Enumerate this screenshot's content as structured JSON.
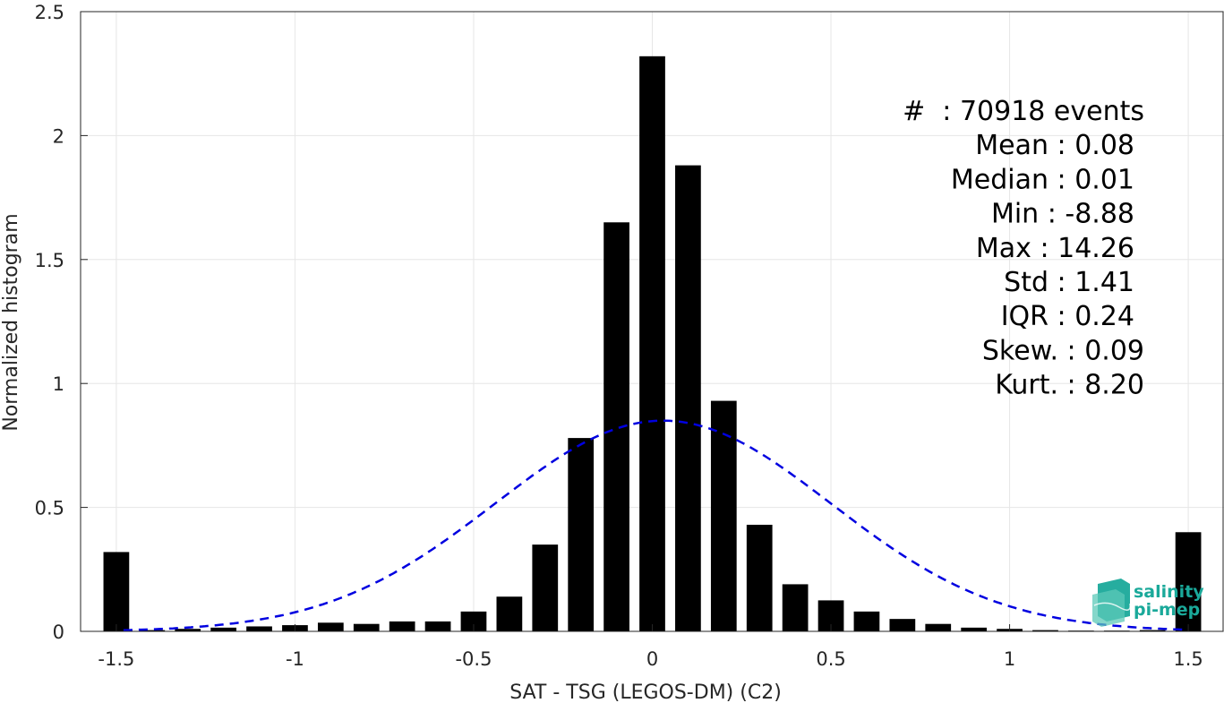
{
  "chart_data": {
    "type": "bar",
    "xlabel": "SAT - TSG (LEGOS-DM) (C2)",
    "ylabel": "Normalized histogram",
    "xlim": [
      -1.6,
      1.6
    ],
    "ylim": [
      0,
      2.5
    ],
    "xticks": [
      -1.5,
      -1,
      -0.5,
      0,
      0.5,
      1,
      1.5
    ],
    "xtick_labels": [
      "-1.5",
      "-1",
      "-0.5",
      "0",
      "0.5",
      "1",
      "1.5"
    ],
    "yticks": [
      0,
      0.5,
      1,
      1.5,
      2,
      2.5
    ],
    "ytick_labels": [
      "0",
      "0.5",
      "1",
      "1.5",
      "2",
      "2.5"
    ],
    "grid": true,
    "bar_color": "#000000",
    "bars": {
      "x": [
        -1.5,
        -1.4,
        -1.3,
        -1.2,
        -1.1,
        -1.0,
        -0.9,
        -0.8,
        -0.7,
        -0.6,
        -0.5,
        -0.4,
        -0.3,
        -0.2,
        -0.1,
        0.0,
        0.1,
        0.2,
        0.3,
        0.4,
        0.5,
        0.6,
        0.7,
        0.8,
        0.9,
        1.0,
        1.1,
        1.2,
        1.3,
        1.4,
        1.5
      ],
      "values": [
        0.32,
        0.005,
        0.01,
        0.015,
        0.02,
        0.025,
        0.035,
        0.03,
        0.04,
        0.04,
        0.08,
        0.14,
        0.35,
        0.78,
        1.65,
        2.32,
        1.88,
        0.93,
        0.43,
        0.19,
        0.125,
        0.08,
        0.05,
        0.03,
        0.015,
        0.01,
        0.005,
        0.003,
        0.003,
        0.005,
        0.4
      ]
    },
    "fit_curve": {
      "type": "normal",
      "mean": 0.03,
      "peak": 0.85,
      "std": 0.47,
      "color": "#0000e0",
      "style": "dashed"
    },
    "stats": [
      "#  : 70918 events",
      "Mean : 0.08",
      "Median : 0.01",
      "Min : -8.88",
      "Max : 14.26",
      "Std : 1.41",
      "IQR : 0.24",
      "Skew. : 0.09",
      "Kurt. : 8.20"
    ]
  },
  "logo": {
    "line1": "salinity",
    "line2": "pi-mep",
    "color": "#1aa99a"
  }
}
